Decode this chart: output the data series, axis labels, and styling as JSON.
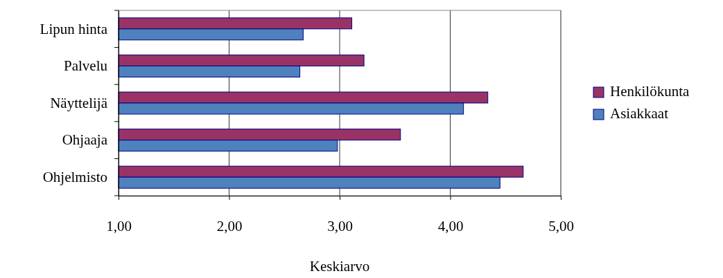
{
  "chart_data": {
    "type": "bar",
    "orientation": "horizontal",
    "xlabel": "Keskiarvo",
    "categories": [
      "Lipun hinta",
      "Palvelu",
      "Näyttelijä",
      "Ohjaaja",
      "Ohjelmisto"
    ],
    "series": [
      {
        "name": "Henkilökunta",
        "color": "#993366",
        "values": [
          3.11,
          3.22,
          4.34,
          3.55,
          4.66
        ]
      },
      {
        "name": "Asiakkaat",
        "color": "#4f81bd",
        "values": [
          2.67,
          2.64,
          4.12,
          2.98,
          4.45
        ]
      }
    ],
    "xlim": [
      1,
      5
    ],
    "xticks": [
      {
        "value": 1,
        "label": "1,00"
      },
      {
        "value": 2,
        "label": "2,00"
      },
      {
        "value": 3,
        "label": "3,00"
      },
      {
        "value": 4,
        "label": "4,00"
      },
      {
        "value": 5,
        "label": "5,00"
      }
    ],
    "grid": "x",
    "legend": "right"
  }
}
